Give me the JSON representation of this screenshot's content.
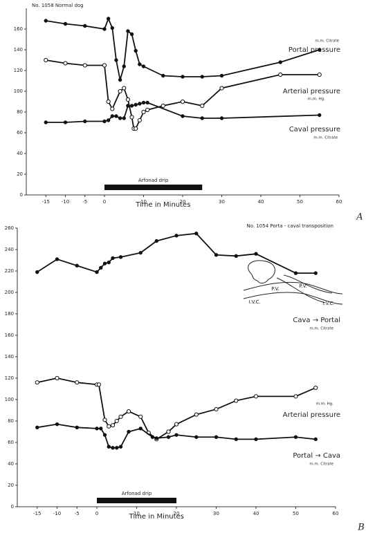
{
  "chart_data": [
    {
      "type": "line",
      "title": "No. 1058 Normal dog",
      "x_label": "Time in Minutes",
      "panel_label": "A",
      "xlim": [
        -20,
        60
      ],
      "xticks": [
        -15,
        -10,
        -5,
        0,
        10,
        20,
        30,
        40,
        50,
        60
      ],
      "ylim": [
        0,
        180
      ],
      "yticks": [
        0,
        20,
        40,
        60,
        80,
        100,
        120,
        140,
        160
      ],
      "drip": {
        "label": "Arfonad drip",
        "start": 0,
        "end": 25
      },
      "annotations": [
        "m.m. Citrate",
        "m.m. Hg.",
        "m.m. Citrate"
      ],
      "series": [
        {
          "name": "Portal pressure",
          "color": "#111111",
          "marker": "filled",
          "x": [
            -15,
            -10,
            -5,
            0,
            1,
            2,
            3,
            4,
            5,
            6,
            7,
            8,
            9,
            10,
            15,
            20,
            25,
            30,
            45,
            55
          ],
          "values": [
            168,
            165,
            163,
            160,
            170,
            161,
            130,
            111,
            124,
            158,
            155,
            139,
            126,
            124,
            115,
            114,
            114,
            115,
            128,
            140
          ]
        },
        {
          "name": "Arterial pressure",
          "color": "#111111",
          "marker": "open",
          "x": [
            -15,
            -10,
            -5,
            0,
            1,
            2,
            4,
            5,
            6,
            7,
            7.5,
            8,
            9,
            10,
            11,
            15,
            20,
            25,
            30,
            45,
            55
          ],
          "values": [
            130,
            127,
            125,
            125,
            90,
            83,
            100,
            103,
            92,
            75,
            64,
            64,
            72,
            80,
            82,
            86,
            90,
            86,
            103,
            116,
            116
          ]
        },
        {
          "name": "Caval pressure",
          "color": "#111111",
          "marker": "filled",
          "x": [
            -15,
            -10,
            -5,
            0,
            1,
            2,
            3,
            4,
            5,
            6,
            7,
            8,
            9,
            10,
            11,
            20,
            25,
            30,
            55
          ],
          "values": [
            70,
            70,
            71,
            71,
            72,
            76,
            76,
            74,
            74,
            86,
            86,
            87,
            88,
            89,
            89,
            76,
            74,
            74,
            77
          ]
        }
      ]
    },
    {
      "type": "line",
      "title": "No. 1054 Porta - caval transposition",
      "x_label": "Time in Minutes",
      "panel_label": "B",
      "xlim": [
        -20,
        60
      ],
      "xticks": [
        -15,
        -10,
        -5,
        0,
        10,
        20,
        30,
        40,
        50,
        60
      ],
      "ylim": [
        0,
        260
      ],
      "yticks": [
        0,
        20,
        40,
        60,
        80,
        100,
        120,
        140,
        160,
        180,
        200,
        220,
        240,
        260
      ],
      "drip": {
        "label": "Arfonad drip",
        "start": 0,
        "end": 20
      },
      "annotations": [
        "m.m. Citrate",
        "m.m. Hg.",
        "m.m. Citrate",
        "P.V.",
        "P.V.",
        "I.V.C.",
        "I.V.C."
      ],
      "series": [
        {
          "name": "Cava → Portal",
          "color": "#111111",
          "marker": "filled",
          "x": [
            -15,
            -10,
            -5,
            0,
            1,
            2,
            3,
            4,
            6,
            11,
            15,
            20,
            25,
            30,
            35,
            40,
            50,
            55
          ],
          "values": [
            219,
            231,
            225,
            219,
            223,
            227,
            228,
            232,
            233,
            237,
            248,
            253,
            255,
            235,
            234,
            236,
            218,
            218
          ]
        },
        {
          "name": "Arterial pressure",
          "color": "#111111",
          "marker": "open",
          "x": [
            -15,
            -10,
            -5,
            0,
            0.5,
            2,
            3,
            4,
            5,
            6,
            8,
            11,
            13,
            15,
            18,
            20,
            25,
            30,
            35,
            40,
            50,
            55
          ],
          "values": [
            116,
            120,
            116,
            114,
            114,
            81,
            75,
            76,
            80,
            84,
            89,
            84,
            69,
            63,
            70,
            77,
            86,
            91,
            99,
            103,
            103,
            111
          ]
        },
        {
          "name": "Portal → Cava",
          "color": "#111111",
          "marker": "filled",
          "x": [
            -15,
            -10,
            -5,
            0,
            1,
            2,
            3,
            4,
            5,
            6,
            8,
            11,
            14,
            15,
            18,
            20,
            25,
            30,
            35,
            40,
            50,
            55
          ],
          "values": [
            74,
            77,
            74,
            73,
            73,
            67,
            56,
            55,
            55,
            56,
            70,
            73,
            65,
            64,
            65,
            67,
            65,
            65,
            63,
            63,
            65,
            63
          ]
        }
      ]
    }
  ]
}
